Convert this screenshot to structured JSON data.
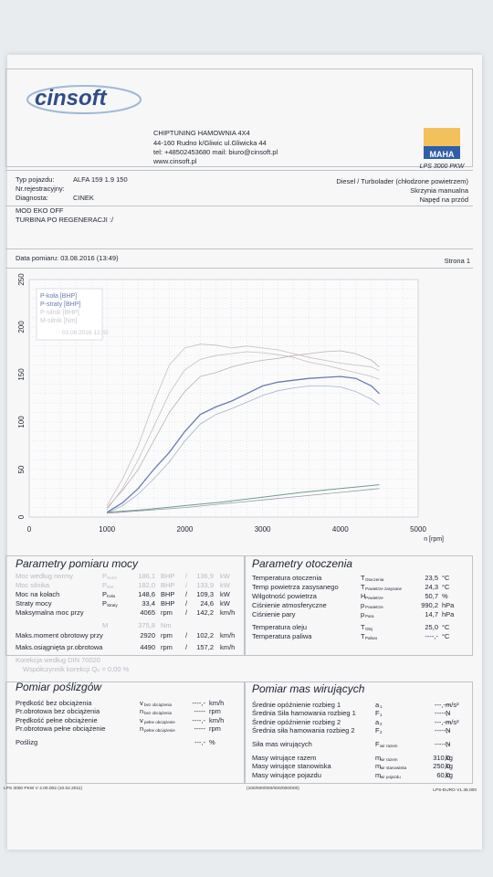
{
  "header": {
    "company_title": "CHIPTUNING HAMOWNIA 4X4",
    "address": "44-160 Rudno k/Gliwic ul.Gliwicka 44",
    "contact": "tel: +48502453680 mail: biuro@cinsoft.pl",
    "website": "www.cinsoft.pl",
    "logo_text": "cinsoft",
    "maha_logo_text": "MAHA",
    "dyno_model": "LPS 3000 PKW"
  },
  "vehicle": {
    "type_label": "Typ pojazdu:",
    "type_value": "ALFA 159 1.9 150",
    "reg_label": "Nr.rejestracyjny:",
    "reg_value": "",
    "diag_label": "Diagnosta:",
    "diag_value": "CINEK",
    "engine": "Diesel / Turbolader (chłodzone powietrzem)",
    "gearbox": "Skrzynia manualna",
    "drive": "Napęd na przód",
    "note1": "MOD EKO OFF",
    "note2": "TURBINA PO REGENERACJI :/"
  },
  "measurement": {
    "date": "Data pomiaru: 03.08.2016 (13:49)",
    "page": "Strona 1"
  },
  "chart_data": {
    "type": "line",
    "xlabel": "n [rpm]",
    "ylabel": "",
    "xlim": [
      0,
      5000
    ],
    "ylim": [
      0,
      250
    ],
    "xticks": [
      "0",
      "1000",
      "2000",
      "3000",
      "4000",
      "5000"
    ],
    "yticks": [
      "0",
      "50",
      "100",
      "150",
      "200",
      "250"
    ],
    "grid": true,
    "legend_position": "top-left",
    "legend": [
      "P-koła [BHP]",
      "P-straty [BHP]",
      "P-silnik [BHP]",
      "M-silnik [Nm]"
    ],
    "legend_timestamp": "03.08.2016 12:55",
    "series": [
      {
        "name": "P-koła [BHP]",
        "color": "#6a7bb0",
        "width": 1.3,
        "x": [
          1000,
          1200,
          1400,
          1600,
          1800,
          2000,
          2200,
          2400,
          2600,
          2800,
          3000,
          3200,
          3400,
          3600,
          3800,
          4000,
          4200,
          4400,
          4500
        ],
        "y": [
          5,
          15,
          30,
          50,
          68,
          90,
          108,
          116,
          122,
          130,
          138,
          142,
          144,
          146,
          147,
          148,
          146,
          138,
          130
        ]
      },
      {
        "name": "P-koła [BHP] (2)",
        "color": "#a6b2cd",
        "width": 0.8,
        "x": [
          1000,
          1200,
          1400,
          1600,
          1800,
          2000,
          2200,
          2400,
          2600,
          2800,
          3000,
          3200,
          3400,
          3600,
          3800,
          4000,
          4200,
          4400,
          4500
        ],
        "y": [
          4,
          12,
          24,
          40,
          58,
          80,
          98,
          108,
          114,
          121,
          128,
          133,
          136,
          138,
          138,
          137,
          132,
          124,
          118
        ]
      },
      {
        "name": "P-silnik [BHP]",
        "color": "#bdb2b2",
        "width": 0.8,
        "x": [
          1000,
          1200,
          1400,
          1600,
          1800,
          2000,
          2200,
          2400,
          2600,
          2800,
          3000,
          3200,
          3400,
          3600,
          3800,
          4000,
          4200,
          4400,
          4500
        ],
        "y": [
          10,
          28,
          50,
          80,
          110,
          132,
          148,
          152,
          158,
          162,
          165,
          167,
          170,
          172,
          174,
          175,
          172,
          165,
          158
        ]
      },
      {
        "name": "M-silnik [Nm]",
        "color": "#c9bfbf",
        "width": 0.8,
        "x": [
          1000,
          1200,
          1400,
          1600,
          1800,
          2000,
          2200,
          2400,
          2600,
          2800,
          3000,
          3200,
          3400,
          3600,
          3800,
          4000,
          4200,
          4400,
          4500
        ],
        "y": [
          12,
          40,
          75,
          120,
          160,
          178,
          182,
          181,
          178,
          180,
          178,
          176,
          172,
          168,
          165,
          162,
          160,
          158,
          154
        ]
      },
      {
        "name": "M (2)",
        "color": "#c9bfbf",
        "width": 0.8,
        "x": [
          1000,
          1200,
          1400,
          1600,
          1800,
          2000,
          2200,
          2400,
          2600,
          2800,
          3000,
          3200,
          3400,
          3600,
          3800,
          4000,
          4200,
          4400,
          4500
        ],
        "y": [
          8,
          30,
          60,
          95,
          130,
          155,
          166,
          170,
          172,
          174,
          173,
          171,
          168,
          163,
          160,
          156,
          152,
          148,
          145
        ]
      },
      {
        "name": "P-straty [BHP]",
        "color": "#6e9f83",
        "width": 1.0,
        "x": [
          1000,
          1500,
          2000,
          2500,
          3000,
          3500,
          4000,
          4500
        ],
        "y": [
          5,
          8,
          12,
          16,
          21,
          26,
          30,
          34
        ]
      },
      {
        "name": "P-straty [BHP] (2)",
        "color": "#9a9ab0",
        "width": 0.8,
        "x": [
          1000,
          1500,
          2000,
          2500,
          3000,
          3500,
          4000,
          4500
        ],
        "y": [
          4,
          7,
          10,
          14,
          18,
          22,
          26,
          30
        ]
      }
    ]
  },
  "params": {
    "title": "Parametry pomiaru mocy",
    "rows": [
      {
        "label": "Moc według normy",
        "sym": "P",
        "sub": "Norm",
        "v1": "186,1",
        "u1": "BHP",
        "sep": "/",
        "v2": "136,9",
        "u2": "kW",
        "faint": true
      },
      {
        "label": "Moc silnika",
        "sym": "P",
        "sub": "Mot",
        "v1": "182,0",
        "u1": "BHP",
        "sep": "/",
        "v2": "133,9",
        "u2": "kW",
        "faint": true
      },
      {
        "label": "Moc na kołach",
        "sym": "P",
        "sub": "Koła",
        "v1": "148,6",
        "u1": "BHP",
        "sep": "/",
        "v2": "109,3",
        "u2": "kW",
        "faint": false
      },
      {
        "label": "Straty mocy",
        "sym": "P",
        "sub": "Straty",
        "v1": "33,4",
        "u1": "BHP",
        "sep": "/",
        "v2": "24,6",
        "u2": "kW",
        "faint": false
      },
      {
        "label": "Maksymalna moc przy",
        "sym": "",
        "sub": "",
        "v1": "4065",
        "u1": "rpm",
        "sep": "/",
        "v2": "142,2",
        "u2": "km/h",
        "faint": false
      },
      {
        "label": "",
        "sym": "M",
        "sub": "",
        "v1": "375,8",
        "u1": "Nm",
        "sep": "",
        "v2": "",
        "u2": "",
        "faint": true
      },
      {
        "label": "Maks.moment obrotowy przy",
        "sym": "",
        "sub": "",
        "v1": "2920",
        "u1": "rpm",
        "sep": "/",
        "v2": "102,2",
        "u2": "km/h",
        "faint": false
      },
      {
        "label": "Maks.osiągnięta pr.obrotowa",
        "sym": "",
        "sub": "",
        "v1": "4490",
        "u1": "rpm",
        "sep": "/",
        "v2": "157,2",
        "u2": "km/h",
        "faint": false
      }
    ],
    "norm_note": "Korekcja według DIN 70020",
    "norm_factor": "Współczynnik korekcji  Q₀ =  0,00 %"
  },
  "env": {
    "title": "Parametry otoczenia",
    "rows": [
      {
        "label": "Temperatura otoczenia",
        "sym": "T",
        "sub": "Otoczenia",
        "val": "23,5",
        "unit": "°C"
      },
      {
        "label": "Temp powietrza zasysanego",
        "sym": "T",
        "sub": "Powietrze zasysane",
        "val": "24,3",
        "unit": "°C"
      },
      {
        "label": "Wilgotność powietrza",
        "sym": "H",
        "sub": "Powietrze",
        "val": "50,7",
        "unit": "%"
      },
      {
        "label": "Ciśnienie atmosferyczne",
        "sym": "p",
        "sub": "Powietrze",
        "val": "990,2",
        "unit": "hPa"
      },
      {
        "label": "Ciśnienie pary",
        "sym": "p",
        "sub": "Para",
        "val": "14,7",
        "unit": "hPa"
      },
      {
        "label": "Temperatura oleju",
        "sym": "T",
        "sub": "Olej",
        "val": "25,0",
        "unit": "°C"
      },
      {
        "label": "Temperatura paliwa",
        "sym": "T",
        "sub": "Paliwo",
        "val": "----,-",
        "unit": "°C"
      }
    ]
  },
  "slip": {
    "title": "Pomiar poślizgów",
    "rows": [
      {
        "label": "Prędkość bez obciążenia",
        "sym": "v",
        "sub": "bez obciążenia",
        "val": "----,-",
        "unit": "km/h"
      },
      {
        "label": "Pr.obrotowa bez obciążenia",
        "sym": "n",
        "sub": "bez obciążenia",
        "val": "-----",
        "unit": "rpm"
      },
      {
        "label": "Prędkość pełne obciążenie",
        "sym": "v",
        "sub": "pełne obciążenie",
        "val": "----,-",
        "unit": "km/h"
      },
      {
        "label": "Pr.obrotowa pełne obciążenie",
        "sym": "n",
        "sub": "pełne obciążenie",
        "val": "-----",
        "unit": "rpm"
      },
      {
        "label": "Poślizg",
        "sym": "",
        "sub": "",
        "val": "---,-",
        "unit": "%"
      }
    ]
  },
  "mass": {
    "title": "Pomiar mas wirujących",
    "rows": [
      {
        "label": "Średnie opóźnienie rozbieg 1",
        "sym": "a",
        "sub": "1",
        "val": "---,---",
        "unit": "m/s²"
      },
      {
        "label": "Średnia Siła hamowania rozbieg 1",
        "sym": "F",
        "sub": "1",
        "val": "-----,-",
        "unit": "N"
      },
      {
        "label": "Średnie opóźnienie rozbieg 2",
        "sym": "a",
        "sub": "2",
        "val": "---,---",
        "unit": "m/s²"
      },
      {
        "label": "Średnia siła hamowania rozbieg 2",
        "sym": "F",
        "sub": "2",
        "val": "-----,-",
        "unit": "N"
      },
      {
        "label": "Siła mas wirujących",
        "sym": "F",
        "sub": "wir razem",
        "val": "-----,-",
        "unit": "N"
      },
      {
        "label": "Masy wirujące razem",
        "sym": "m",
        "sub": "wir razem",
        "val": "310,0",
        "unit": "kg"
      },
      {
        "label": "Masy wirujące stanowiska",
        "sym": "m",
        "sub": "wir stanowiska",
        "val": "250,0",
        "unit": "kg"
      },
      {
        "label": "Masy wirujące pojazdu",
        "sym": "m",
        "sub": "wir pojazdu",
        "val": "60,0",
        "unit": "kg"
      }
    ]
  },
  "footer": {
    "left": "LPS 3000 PKW V 2.00.002 (10.02.2011)",
    "mid": "(100/000/000/000/000/000)",
    "right": "LPS-EURO V1.35.000"
  }
}
